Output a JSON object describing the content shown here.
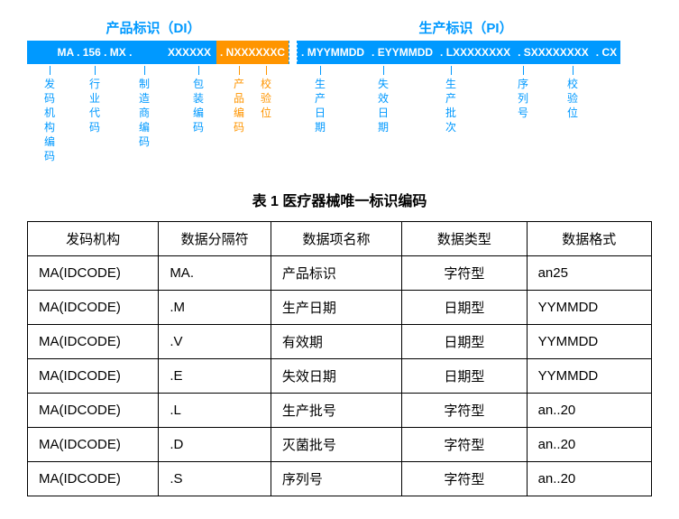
{
  "colors": {
    "blue": "#0099ff",
    "orange": "#ff9500",
    "text": "#000000",
    "bg": "#ffffff"
  },
  "diagram": {
    "left_title": "产品标识（DI）",
    "right_title": "生产标识（PI）",
    "di_code_parts": {
      "prefix": "MA . 156 . MX .",
      "six_x": "XXXXXX",
      "n_block": ". NXXXXXXC"
    },
    "pi_code_parts": {
      "m": ". MYYMMDD",
      "e": ". EYYMMDD",
      "l": ". LXXXXXXXX",
      "s": ". SXXXXXXXX",
      "c": ". CX"
    },
    "di_labels": [
      "发码机构编码",
      "行业代码",
      "制造商编码",
      "包装编码",
      "产品编码",
      "校验位"
    ],
    "pi_labels": [
      "生产日期",
      "失效日期",
      "生产批次",
      "序列号",
      "校验位"
    ]
  },
  "table": {
    "title": "表 1  医疗器械唯一标识编码",
    "headers": [
      "发码机构",
      "数据分隔符",
      "数据项名称",
      "数据类型",
      "数据格式"
    ],
    "rows": [
      [
        "MA(IDCODE)",
        "MA.",
        "产品标识",
        "字符型",
        "an25"
      ],
      [
        "MA(IDCODE)",
        ".M",
        "生产日期",
        "日期型",
        "YYMMDD"
      ],
      [
        "MA(IDCODE)",
        ".V",
        "有效期",
        "日期型",
        "YYMMDD"
      ],
      [
        "MA(IDCODE)",
        ".E",
        "失效日期",
        "日期型",
        "YYMMDD"
      ],
      [
        "MA(IDCODE)",
        ".L",
        "生产批号",
        "字符型",
        "an..20"
      ],
      [
        "MA(IDCODE)",
        ".D",
        "灭菌批号",
        "字符型",
        "an..20"
      ],
      [
        "MA(IDCODE)",
        ".S",
        "序列号",
        "字符型",
        "an..20"
      ]
    ],
    "column_align": [
      "left",
      "left",
      "left",
      "center",
      "left"
    ],
    "font_size_header": 15,
    "font_size_cell": 15
  }
}
